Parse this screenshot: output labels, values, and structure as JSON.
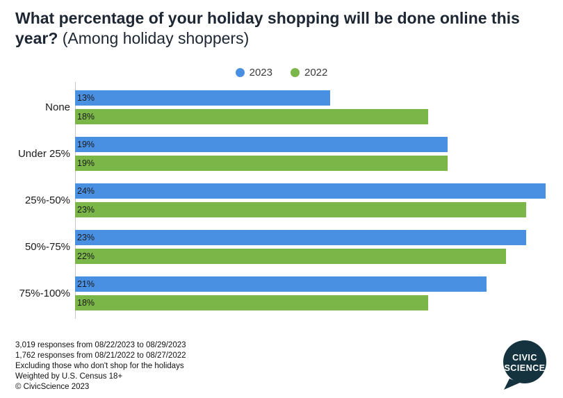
{
  "header": {
    "title_bold": "What percentage of your holiday shopping will be done online this year?",
    "title_regular": " (Among holiday shoppers)"
  },
  "chart_data": {
    "type": "bar",
    "orientation": "horizontal",
    "title": "What percentage of your holiday shopping will be done online this year? (Among holiday shoppers)",
    "categories": [
      "None",
      "Under 25%",
      "25%-50%",
      "50%-75%",
      "75%-100%"
    ],
    "series": [
      {
        "name": "2023",
        "color": "#4a90e2",
        "values": [
          13,
          19,
          24,
          23,
          21
        ]
      },
      {
        "name": "2022",
        "color": "#7ab648",
        "values": [
          18,
          19,
          23,
          22,
          18
        ]
      }
    ],
    "value_suffix": "%",
    "xlim": [
      0,
      24.2
    ],
    "grid": false,
    "legend_position": "top-center",
    "value_labels": "inside-left"
  },
  "footer": {
    "lines": [
      "3,019 responses from 08/22/2023 to 08/29/2023",
      "1,762 responses from 08/21/2022 to 08/27/2022",
      "Excluding those who don't shop for the holidays",
      "Weighted by U.S. Census 18+",
      "© CivicScience 2023"
    ]
  },
  "logo": {
    "line1": "CIVIC",
    "line2": "SCIENCE",
    "bg_color": "#14333e",
    "text_color": "#ffffff"
  }
}
